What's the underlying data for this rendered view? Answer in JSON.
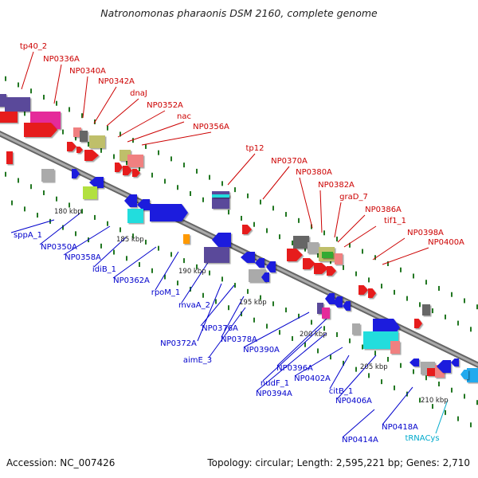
{
  "title": "Natronomonas pharaonis DSM 2160, complete genome",
  "footer": {
    "accession": "Accession: NC_007426",
    "summary": "Topology: circular; Length: 2,595,221 bp; Genes: 2,710"
  },
  "colors": {
    "label_top": "#cc0000",
    "label_bottom": "#0000cc",
    "label_trna": "#00aacc",
    "backbone": "#888888",
    "tick_green": "#227722"
  },
  "ruler_ticks": [
    "180 kbp",
    "185 kbp",
    "190 kbp",
    "195 kbp",
    "200 kbp",
    "205 kbp",
    "210 kbp"
  ],
  "labels_top": [
    "tp40_2",
    "NP0336A",
    "NP0340A",
    "NP0342A",
    "dnaJ",
    "NP0352A",
    "nac",
    "NP0356A",
    "tp12",
    "NP0370A",
    "NP0380A",
    "NP0382A",
    "graD_7",
    "NP0386A",
    "tif1_1",
    "NP0398A",
    "NP0400A"
  ],
  "labels_bottom": [
    "sppA_1",
    "NP0350A",
    "NP0358A",
    "idiB_1",
    "NP0362A",
    "rpoM_1",
    "mvaA_2",
    "NP0372A",
    "NP0376A",
    "NP0378A",
    "aimE_3",
    "NP0390A",
    "NP0396A",
    "nudF_1",
    "NP0394A",
    "NP0402A",
    "citB_1",
    "NP0406A",
    "NP0418A",
    "NP0414A"
  ],
  "labels_trna": [
    "tRNACys"
  ]
}
